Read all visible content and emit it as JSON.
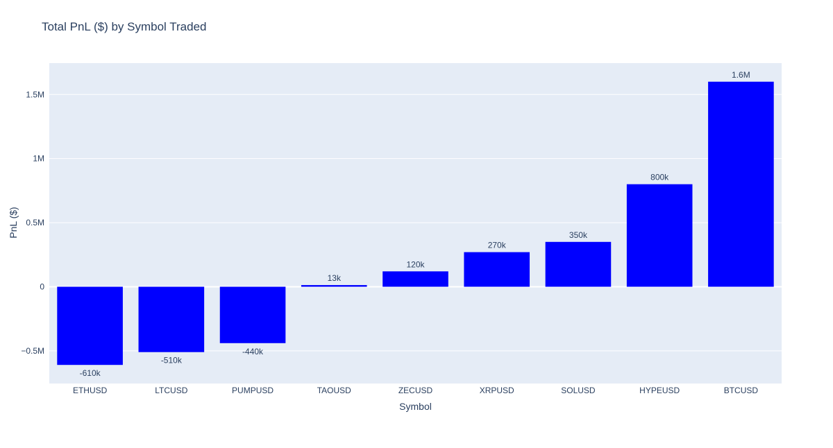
{
  "title": "Total PnL ($) by Symbol Traded",
  "chart_data": {
    "type": "bar",
    "title": "Total PnL ($) by Symbol Traded",
    "xlabel": "Symbol",
    "ylabel": "PnL ($)",
    "categories": [
      "ETHUSD",
      "LTCUSD",
      "PUMPUSD",
      "TAOUSD",
      "ZECUSD",
      "XRPUSD",
      "SOLUSD",
      "HYPEUSD",
      "BTCUSD"
    ],
    "values": [
      -610000,
      -510000,
      -440000,
      13000,
      120000,
      270000,
      350000,
      800000,
      1600000
    ],
    "bar_labels": [
      "-610k",
      "-510k",
      "-440k",
      "13k",
      "120k",
      "270k",
      "350k",
      "800k",
      "1.6M"
    ],
    "ylim": [
      -755000,
      1745000
    ],
    "yticks": [
      -500000,
      0,
      500000,
      1000000,
      1500000
    ],
    "ytick_labels": [
      "−0.5M",
      "0",
      "0.5M",
      "1M",
      "1.5M"
    ],
    "grid": true,
    "legend": "none",
    "colors": {
      "bar": "#0000ff",
      "plot_bg": "#e5ecf6",
      "grid": "#ffffff",
      "zeroline": "#ffffff",
      "text": "#2a3f5f",
      "paper_bg": "#ffffff"
    }
  }
}
